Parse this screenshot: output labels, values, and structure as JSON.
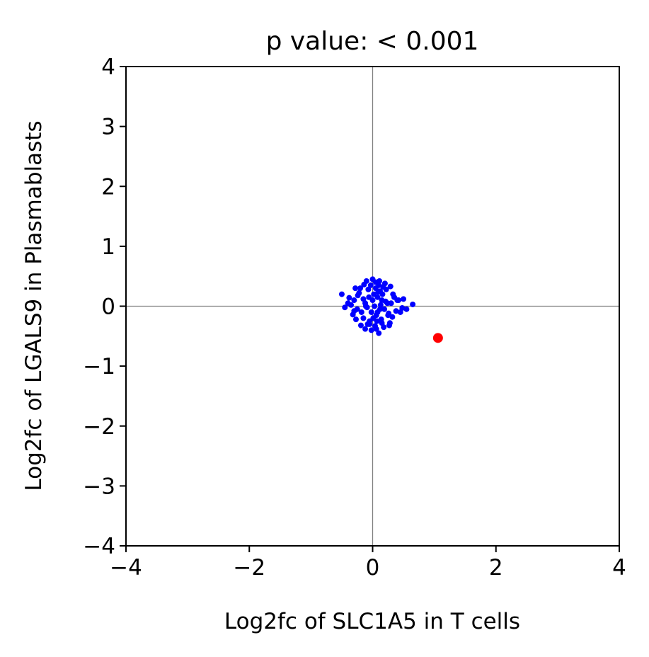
{
  "chart_data": {
    "type": "scatter",
    "title": "p value: < 0.001",
    "xlabel": "Log2fc of SLC1A5 in T cells",
    "ylabel": "Log2fc of LGALS9 in Plasmablasts",
    "xlim": [
      -4,
      4
    ],
    "ylim": [
      -4,
      4
    ],
    "xticks": [
      -4,
      -2,
      0,
      2,
      4
    ],
    "yticks": [
      -4,
      -3,
      -2,
      -1,
      0,
      1,
      2,
      3,
      4
    ],
    "xtick_labels": [
      "−4",
      "−2",
      "0",
      "2",
      "4"
    ],
    "ytick_labels": [
      "−4",
      "−3",
      "−2",
      "−1",
      "0",
      "1",
      "2",
      "3",
      "4"
    ],
    "grid": false,
    "reference_lines": {
      "x": 0,
      "y": 0,
      "color": "#808080"
    },
    "series": [
      {
        "color": "#0000ff",
        "x": [
          -0.12,
          0.08,
          0.02,
          -0.05,
          0.15,
          -0.2,
          0.25,
          0.1,
          -0.08,
          0.05,
          0.3,
          -0.3,
          0.18,
          -0.15,
          0.0,
          0.12,
          -0.02,
          0.22,
          -0.25,
          0.06,
          -0.1,
          0.35,
          -0.35,
          0.28,
          0.4,
          -0.4,
          0.45,
          0.5,
          -0.45,
          0.55,
          0.65,
          -0.5,
          0.1,
          -0.05,
          0.2,
          -0.18,
          0.03,
          -0.22,
          0.14,
          0.32,
          -0.28,
          0.08,
          -0.12,
          0.24,
          0.17,
          -0.07,
          0.38,
          -0.32,
          0.01,
          0.11,
          -0.15,
          0.27,
          -0.03,
          0.06,
          0.19,
          -0.24,
          0.42,
          0.15,
          -0.27,
          0.09,
          0.13,
          -0.09,
          0.0,
          0.05,
          -0.14,
          0.21,
          -0.19,
          0.33,
          0.07,
          -0.06,
          0.26,
          -0.11,
          0.16,
          -0.02,
          0.29,
          0.48,
          -0.38,
          0.04,
          -0.3,
          0.12
        ],
        "y": [
          0.05,
          -0.1,
          0.2,
          -0.25,
          0.1,
          0.3,
          -0.15,
          0.35,
          -0.3,
          0.4,
          0.05,
          0.1,
          -0.35,
          -0.2,
          0.45,
          0.25,
          -0.4,
          0.28,
          -0.05,
          -0.38,
          0.42,
          0.15,
          0.02,
          -0.28,
          0.1,
          0.05,
          -0.1,
          0.12,
          -0.02,
          -0.05,
          0.03,
          0.2,
          -0.45,
          -0.3,
          0.38,
          -0.1,
          0.0,
          0.22,
          -0.22,
          -0.18,
          0.3,
          0.15,
          -0.38,
          0.05,
          0.32,
          0.28,
          -0.08,
          -0.14,
          -0.2,
          0.42,
          0.12,
          -0.32,
          0.35,
          -0.15,
          -0.05,
          0.18,
          0.1,
          -0.28,
          -0.22,
          0.24,
          0.02,
          -0.02,
          0.1,
          0.3,
          0.36,
          0.08,
          -0.32,
          0.2,
          -0.25,
          0.15,
          -0.12,
          0.0,
          0.2,
          -0.1,
          0.33,
          -0.03,
          0.14,
          -0.33,
          -0.08,
          -0.05
        ]
      },
      {
        "color": "#ff0000",
        "x": [
          1.06
        ],
        "y": [
          -0.53
        ]
      }
    ]
  }
}
